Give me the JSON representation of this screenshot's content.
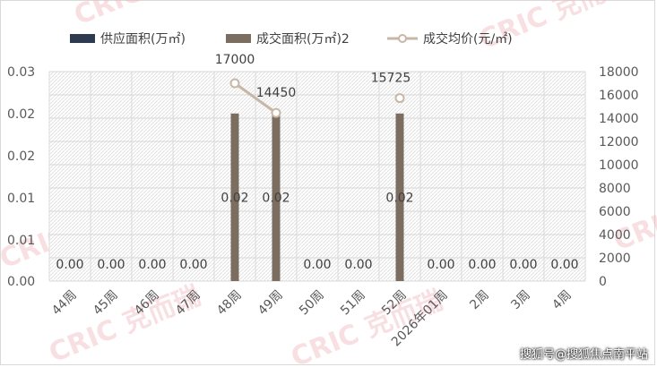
{
  "chart_data": {
    "type": "bar",
    "categories": [
      "44周",
      "45周",
      "46周",
      "47周",
      "48周",
      "49周",
      "50周",
      "51周",
      "52周",
      "2026年01周",
      "2周",
      "3周",
      "4周"
    ],
    "series": [
      {
        "name": "供应面积(万㎡)",
        "type": "bar",
        "axis": "left",
        "color": "#2e3a4f",
        "values": [
          0,
          0,
          0,
          0,
          0,
          0,
          0,
          0,
          0,
          0,
          0,
          0,
          0
        ]
      },
      {
        "name": "成交面积(万㎡)2",
        "type": "bar",
        "axis": "left",
        "color": "#7b6e61",
        "values": [
          0,
          0,
          0,
          0,
          0.02,
          0.02,
          0,
          0,
          0.02,
          0,
          0,
          0,
          0
        ],
        "labels": [
          "0.00",
          "0.00",
          "0.00",
          "0.00",
          "0.02",
          "0.02",
          "0.00",
          "0.00",
          "0.02",
          "0.00",
          "0.00",
          "0.00",
          "0.00"
        ]
      },
      {
        "name": "成交均价(元/㎡)",
        "type": "line",
        "axis": "right",
        "color": "#c8b7a6",
        "values": [
          null,
          null,
          null,
          null,
          17000,
          14450,
          null,
          null,
          15725,
          null,
          null,
          null,
          null
        ],
        "labels": [
          "",
          "",
          "",
          "",
          "17000",
          "14450",
          "",
          "",
          "15725",
          "",
          "",
          "",
          ""
        ]
      }
    ],
    "y_left": {
      "ticks": [
        "0.00",
        "0.01",
        "0.01",
        "0.02",
        "0.02",
        "0.03"
      ],
      "ylim": [
        0,
        0.025
      ]
    },
    "y_right": {
      "ticks": [
        "0",
        "2000",
        "4000",
        "6000",
        "8000",
        "10000",
        "12000",
        "14000",
        "16000",
        "18000"
      ],
      "ylim": [
        0,
        18000
      ]
    },
    "legend": "top",
    "grid": true
  },
  "watermark": "CRIC 克而瑞",
  "caption": "搜狐号@搜狐焦点南平站"
}
